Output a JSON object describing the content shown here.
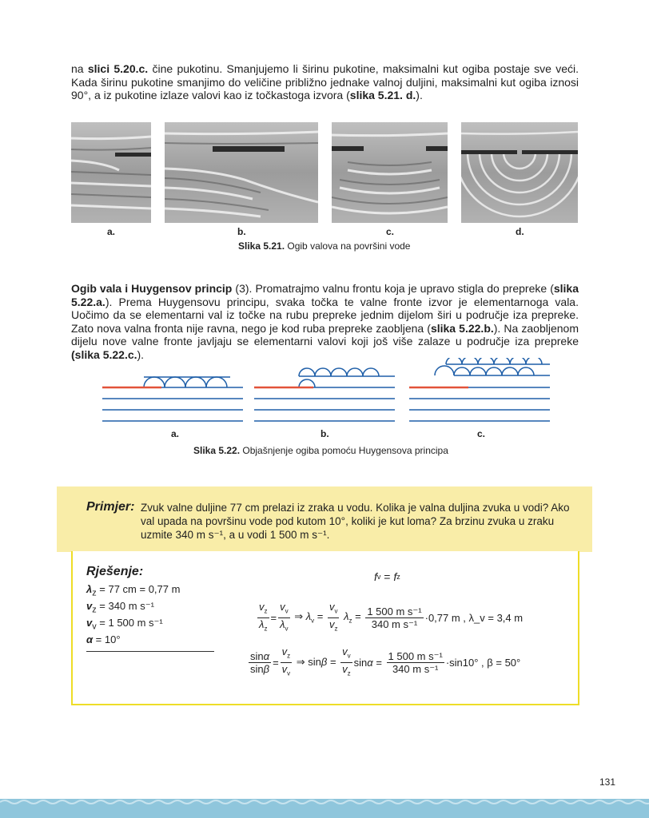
{
  "intro_paragraph": {
    "part1": "na ",
    "bold1": "slici 5.20.c.",
    "part2": " čine pukotinu. Smanjujemo li širinu pukotine, maksimalni kut ogiba postaje sve veći. Kada širinu pukotine smanjimo do veličine približno jednake valnoj duljini, maksimalni kut ogiba iznosi 90°,  a iz pukotine izlaze valovi kao iz točkastoga izvora (",
    "bold2": "slika 5.21. d.",
    "part3": ")."
  },
  "figure_521": {
    "labels": [
      "a.",
      "b.",
      "c.",
      "d."
    ],
    "caption_bold": "Slika 5.21.",
    "caption_text": " Ogib valova na površini vode"
  },
  "huygens_paragraph": {
    "heading": "Ogib vala i Huygensov princip",
    "p1": " (3). Promatrajmo valnu frontu koja je upravo stigla do prepreke (",
    "b1": "slika 5.22.a.",
    "p2": "). Prema Huygensovu principu, svaka točka te valne fronte izvor je elementarnoga vala. Uočimo da se elementarni val iz točke na rubu prepreke jednim dijelom širi u područje iza prepreke. Zato nova valna fronta nije ravna, nego je kod ruba prepreke zaobljena (",
    "b2": "slika 5.22.b.",
    "p3": "). Na zaobljenom dijelu nove valne fronte javljaju se elementarni valovi koji još više zalaze u područje iza prepreke ",
    "b3": "(slika 5.22.c.",
    "p4": ")."
  },
  "figure_522": {
    "labels": [
      "a.",
      "b.",
      "c."
    ],
    "caption_bold": "Slika 5.22.",
    "caption_text": " Objašnjenje ogiba pomoću Huygensova principa",
    "colors": {
      "wave": "#1f5fa8",
      "obstacle": "#e2533a"
    }
  },
  "example": {
    "title": "Primjer:",
    "text": "Zvuk valne duljine 77 cm prelazi iz zraka u vodu. Kolika je valna duljina zvuka u vodi? Ako val upada na površinu vode pod kutom 10°, koliki je kut loma? Za brzinu zvuka u zraku uzmite 340 m s⁻¹, a u vodi 1 500 m s⁻¹."
  },
  "solution": {
    "title": "Rješenje:",
    "given": [
      {
        "sym": "λ",
        "sub": "z",
        "val": " = 77 cm = 0,77 m"
      },
      {
        "sym": "v",
        "sub": "z",
        "val": " = 340 m s⁻¹"
      },
      {
        "sym": "v",
        "sub": "v",
        "val": " = 1 500 m s⁻¹"
      },
      {
        "sym": "α",
        "sub": "",
        "val": " = 10°"
      }
    ],
    "top_formula": "f_v = f_z",
    "eq1_tail": "0,77 m",
    "eq1_result": "λ_v = 3,4 m",
    "eq2_tail": "sin10°",
    "eq2_result": "β = 50°",
    "num_value": "1 500 m s⁻¹",
    "den_value": "340 m s⁻¹"
  },
  "page_number": "131"
}
